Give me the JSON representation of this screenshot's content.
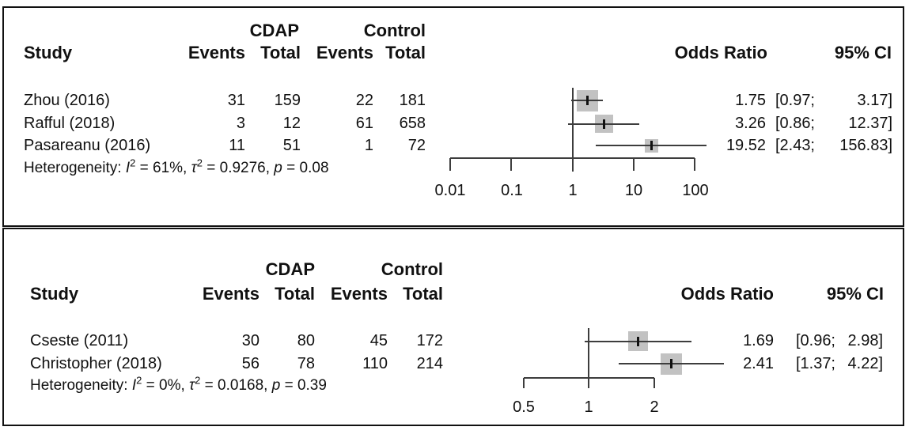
{
  "panels": [
    {
      "header": {
        "study": "Study",
        "group1": "CDAP",
        "group2": "Control",
        "events1": "Events",
        "total1": "Total",
        "events2": "Events",
        "total2": "Total",
        "odds_ratio": "Odds Ratio",
        "ci": "95% CI"
      },
      "rows": [
        {
          "study": "Zhou (2016)",
          "e1": "31",
          "t1": "159",
          "e2": "22",
          "t2": "181",
          "or": "1.75",
          "ci_lo": "[0.97;",
          "ci_hi": "3.17]"
        },
        {
          "study": "Rafful (2018)",
          "e1": "3",
          "t1": "12",
          "e2": "61",
          "t2": "658",
          "or": "3.26",
          "ci_lo": "[0.86;",
          "ci_hi": "12.37]"
        },
        {
          "study": "Pasareanu (2016)",
          "e1": "11",
          "t1": "51",
          "e2": "1",
          "t2": "72",
          "or": "19.52",
          "ci_lo": "[2.43;",
          "ci_hi": "156.83]"
        }
      ],
      "het": {
        "label": "Heterogeneity: ",
        "i": "I",
        "i_sup": "2",
        "seg1": " = 61%, ",
        "tau": "τ",
        "tau_sup": "2",
        "seg2": " = 0.9276, ",
        "p": "p",
        "seg3": " = 0.08"
      },
      "axis_ticks": [
        "0.01",
        "0.1",
        "1",
        "10",
        "100"
      ]
    },
    {
      "header": {
        "study": "Study",
        "group1": "CDAP",
        "group2": "Control",
        "events1": "Events",
        "total1": "Total",
        "events2": "Events",
        "total2": "Total",
        "odds_ratio": "Odds Ratio",
        "ci": "95% CI"
      },
      "rows": [
        {
          "study": "Cseste (2011)",
          "e1": "30",
          "t1": "80",
          "e2": "45",
          "t2": "172",
          "or": "1.69",
          "ci_lo": "[0.96;",
          "ci_hi": "2.98]"
        },
        {
          "study": "Christopher (2018)",
          "e1": "56",
          "t1": "78",
          "e2": "110",
          "t2": "214",
          "or": "2.41",
          "ci_lo": "[1.37;",
          "ci_hi": "4.22]"
        }
      ],
      "het": {
        "label": "Heterogeneity: ",
        "i": "I",
        "i_sup": "2",
        "seg1": " = 0%, ",
        "tau": "τ",
        "tau_sup": "2",
        "seg2": " = 0.0168, ",
        "p": "p",
        "seg3": " = 0.39"
      },
      "axis_ticks": [
        "0.5",
        "1",
        "2"
      ]
    }
  ],
  "chart_data": [
    {
      "type": "scatter",
      "variant": "forest_plot",
      "title": "",
      "studies": [
        "Zhou (2016)",
        "Rafful (2018)",
        "Pasareanu (2016)"
      ],
      "treatment_label": "CDAP",
      "control_label": "Control",
      "events_treatment": [
        31,
        3,
        11
      ],
      "total_treatment": [
        159,
        12,
        51
      ],
      "events_control": [
        22,
        61,
        1
      ],
      "total_control": [
        181,
        658,
        72
      ],
      "odds_ratio": [
        1.75,
        3.26,
        19.52
      ],
      "ci_low": [
        0.97,
        0.86,
        2.43
      ],
      "ci_high": [
        3.17,
        12.37,
        156.83
      ],
      "heterogeneity": {
        "I2": "61%",
        "tau2": 0.9276,
        "p": 0.08
      },
      "x_scale": "log",
      "x_ticks": [
        0.01,
        0.1,
        1,
        10,
        100
      ],
      "ref_line": 1,
      "legend": "none",
      "grid": false
    },
    {
      "type": "scatter",
      "variant": "forest_plot",
      "title": "",
      "studies": [
        "Cseste (2011)",
        "Christopher (2018)"
      ],
      "treatment_label": "CDAP",
      "control_label": "Control",
      "events_treatment": [
        30,
        56
      ],
      "total_treatment": [
        80,
        78
      ],
      "events_control": [
        45,
        110
      ],
      "total_control": [
        172,
        214
      ],
      "odds_ratio": [
        1.69,
        2.41
      ],
      "ci_low": [
        0.96,
        1.37
      ],
      "ci_high": [
        2.98,
        4.22
      ],
      "heterogeneity": {
        "I2": "0%",
        "tau2": 0.0168,
        "p": 0.39
      },
      "x_scale": "log",
      "x_ticks": [
        0.5,
        1,
        2
      ],
      "ref_line": 1,
      "legend": "none",
      "grid": false
    }
  ]
}
